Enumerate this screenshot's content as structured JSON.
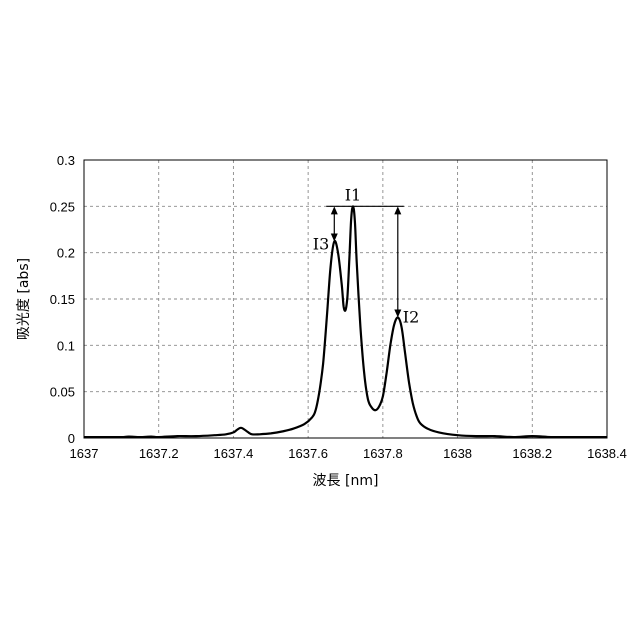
{
  "chart_data": {
    "type": "line",
    "title": "",
    "xlabel": "波長 [nm]",
    "ylabel": "吸光度 [abs]",
    "xlim": [
      1637,
      1638.4
    ],
    "ylim": [
      0,
      0.3
    ],
    "grid": true,
    "legend": "none",
    "x_ticks": [
      1637,
      1637.2,
      1637.4,
      1637.6,
      1637.8,
      1638,
      1638.2,
      1638.4
    ],
    "x_tick_labels": [
      "1637",
      "1637.2",
      "1637.4",
      "1637.6",
      "1637.8",
      "1638",
      "1638.2",
      "1638.4"
    ],
    "y_ticks": [
      0,
      0.05,
      0.1,
      0.15,
      0.2,
      0.25,
      0.3
    ],
    "y_tick_labels": [
      "0",
      "0.05",
      "0.1",
      "0.15",
      "0.2",
      "0.25",
      "0.3"
    ],
    "series": [
      {
        "x": [
          1637.0,
          1637.05,
          1637.1,
          1637.12,
          1637.15,
          1637.18,
          1637.2,
          1637.25,
          1637.3,
          1637.35,
          1637.38,
          1637.4,
          1637.41,
          1637.42,
          1637.43,
          1637.44,
          1637.45,
          1637.47,
          1637.5,
          1637.53,
          1637.56,
          1637.59,
          1637.61,
          1637.62,
          1637.63,
          1637.64,
          1637.65,
          1637.66,
          1637.67,
          1637.68,
          1637.69,
          1637.695,
          1637.7,
          1637.705,
          1637.71,
          1637.715,
          1637.72,
          1637.725,
          1637.73,
          1637.74,
          1637.75,
          1637.76,
          1637.77,
          1637.78,
          1637.79,
          1637.8,
          1637.81,
          1637.82,
          1637.83,
          1637.84,
          1637.85,
          1637.86,
          1637.87,
          1637.88,
          1637.89,
          1637.9,
          1637.92,
          1637.95,
          1638.0,
          1638.05,
          1638.1,
          1638.15,
          1638.2,
          1638.25,
          1638.3,
          1638.35,
          1638.4
        ],
        "y": [
          0.001,
          0.001,
          0.001,
          0.0015,
          0.001,
          0.0015,
          0.001,
          0.002,
          0.002,
          0.003,
          0.004,
          0.006,
          0.009,
          0.011,
          0.009,
          0.006,
          0.004,
          0.004,
          0.005,
          0.007,
          0.01,
          0.015,
          0.022,
          0.03,
          0.05,
          0.08,
          0.13,
          0.185,
          0.212,
          0.2,
          0.165,
          0.142,
          0.138,
          0.152,
          0.19,
          0.235,
          0.25,
          0.235,
          0.19,
          0.12,
          0.07,
          0.042,
          0.033,
          0.03,
          0.034,
          0.045,
          0.07,
          0.1,
          0.122,
          0.13,
          0.12,
          0.09,
          0.06,
          0.038,
          0.024,
          0.016,
          0.01,
          0.006,
          0.003,
          0.002,
          0.002,
          0.001,
          0.002,
          0.001,
          0.001,
          0.001,
          0.001
        ]
      }
    ],
    "annotations": [
      {
        "label": "I1",
        "x": 1637.72,
        "y": 0.25
      },
      {
        "label": "I2",
        "x": 1637.84,
        "y": 0.13
      },
      {
        "label": "I3",
        "x": 1637.67,
        "y": 0.212
      }
    ]
  }
}
